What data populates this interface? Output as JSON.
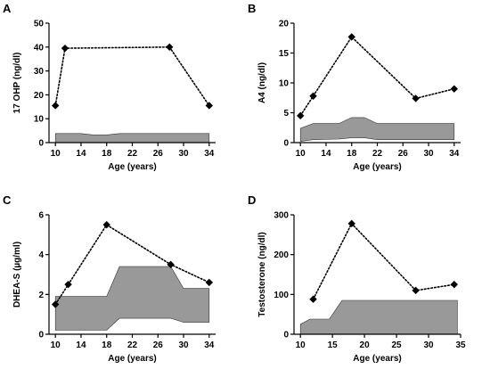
{
  "panels": [
    {
      "letter": "A",
      "chart_data": {
        "type": "line",
        "xlabel": "Age (years)",
        "ylabel": "17 OHP (ng/dl)",
        "xlim": [
          9,
          35
        ],
        "ylim": [
          0,
          50
        ],
        "xticks": [
          10,
          14,
          18,
          22,
          26,
          30,
          34
        ],
        "yticks": [
          0,
          10,
          20,
          30,
          40,
          50
        ],
        "series": [
          {
            "x": [
              10,
              11.5,
              27.8,
              34
            ],
            "y": [
              15.5,
              39.5,
              40,
              15.5
            ]
          }
        ],
        "reference_range": {
          "x": [
            10,
            14,
            16,
            18,
            20,
            24,
            28,
            34
          ],
          "lower": [
            0,
            0,
            0,
            0,
            0,
            0,
            0,
            0
          ],
          "upper": [
            3.8,
            3.8,
            3.2,
            3.2,
            3.8,
            3.8,
            3.8,
            3.8
          ]
        }
      }
    },
    {
      "letter": "B",
      "chart_data": {
        "type": "line",
        "xlabel": "Age (years)",
        "ylabel": "A4 (ng/dl)",
        "xlim": [
          9,
          35
        ],
        "ylim": [
          0,
          20
        ],
        "xticks": [
          10,
          14,
          18,
          22,
          26,
          30,
          34
        ],
        "yticks": [
          0,
          5,
          10,
          15,
          20
        ],
        "series": [
          {
            "x": [
              10,
              12,
              18,
              28,
              34
            ],
            "y": [
              4.5,
              7.8,
              17.7,
              7.4,
              9.0
            ]
          }
        ],
        "reference_range": {
          "x": [
            10,
            12,
            16,
            18,
            20,
            22,
            28,
            34
          ],
          "lower": [
            0.2,
            0.5,
            0.6,
            0.8,
            0.8,
            0.5,
            0.5,
            0.5
          ],
          "upper": [
            2.4,
            3.2,
            3.2,
            4.2,
            4.2,
            3.2,
            3.2,
            3.2
          ]
        }
      }
    },
    {
      "letter": "C",
      "chart_data": {
        "type": "line",
        "xlabel": "Age (years)",
        "ylabel": "DHEA-S (µg/ml)",
        "xlim": [
          9,
          35
        ],
        "ylim": [
          0,
          6
        ],
        "xticks": [
          10,
          14,
          18,
          22,
          26,
          30,
          34
        ],
        "yticks": [
          0,
          2,
          4,
          6
        ],
        "series": [
          {
            "x": [
              10,
              12,
              18,
              28,
              34
            ],
            "y": [
              1.5,
              2.5,
              5.5,
              3.5,
              2.6
            ]
          }
        ],
        "reference_range": {
          "x": [
            10,
            18,
            20,
            28,
            30,
            34
          ],
          "lower": [
            0.2,
            0.2,
            0.8,
            0.8,
            0.6,
            0.6
          ],
          "upper": [
            1.9,
            1.9,
            3.4,
            3.4,
            2.3,
            2.3
          ]
        }
      }
    },
    {
      "letter": "D",
      "chart_data": {
        "type": "line",
        "xlabel": "Age (years)",
        "ylabel": "Testosterone (ng/dl)",
        "xlim": [
          9,
          35
        ],
        "ylim": [
          0,
          300
        ],
        "xticks": [
          10,
          15,
          20,
          25,
          30,
          35
        ],
        "yticks": [
          0,
          100,
          200,
          300
        ],
        "series": [
          {
            "x": [
              12,
              18,
              28,
              34
            ],
            "y": [
              88,
              278,
              110,
              125
            ]
          }
        ],
        "reference_range": {
          "x": [
            10,
            11.5,
            14.5,
            16.5,
            34.5
          ],
          "lower": [
            0,
            0,
            0,
            0,
            0
          ],
          "upper": [
            25,
            38,
            38,
            85,
            85
          ]
        }
      }
    }
  ],
  "colors": {
    "range_fill": "#999999",
    "range_stroke": "#333333",
    "line": "#000000"
  }
}
